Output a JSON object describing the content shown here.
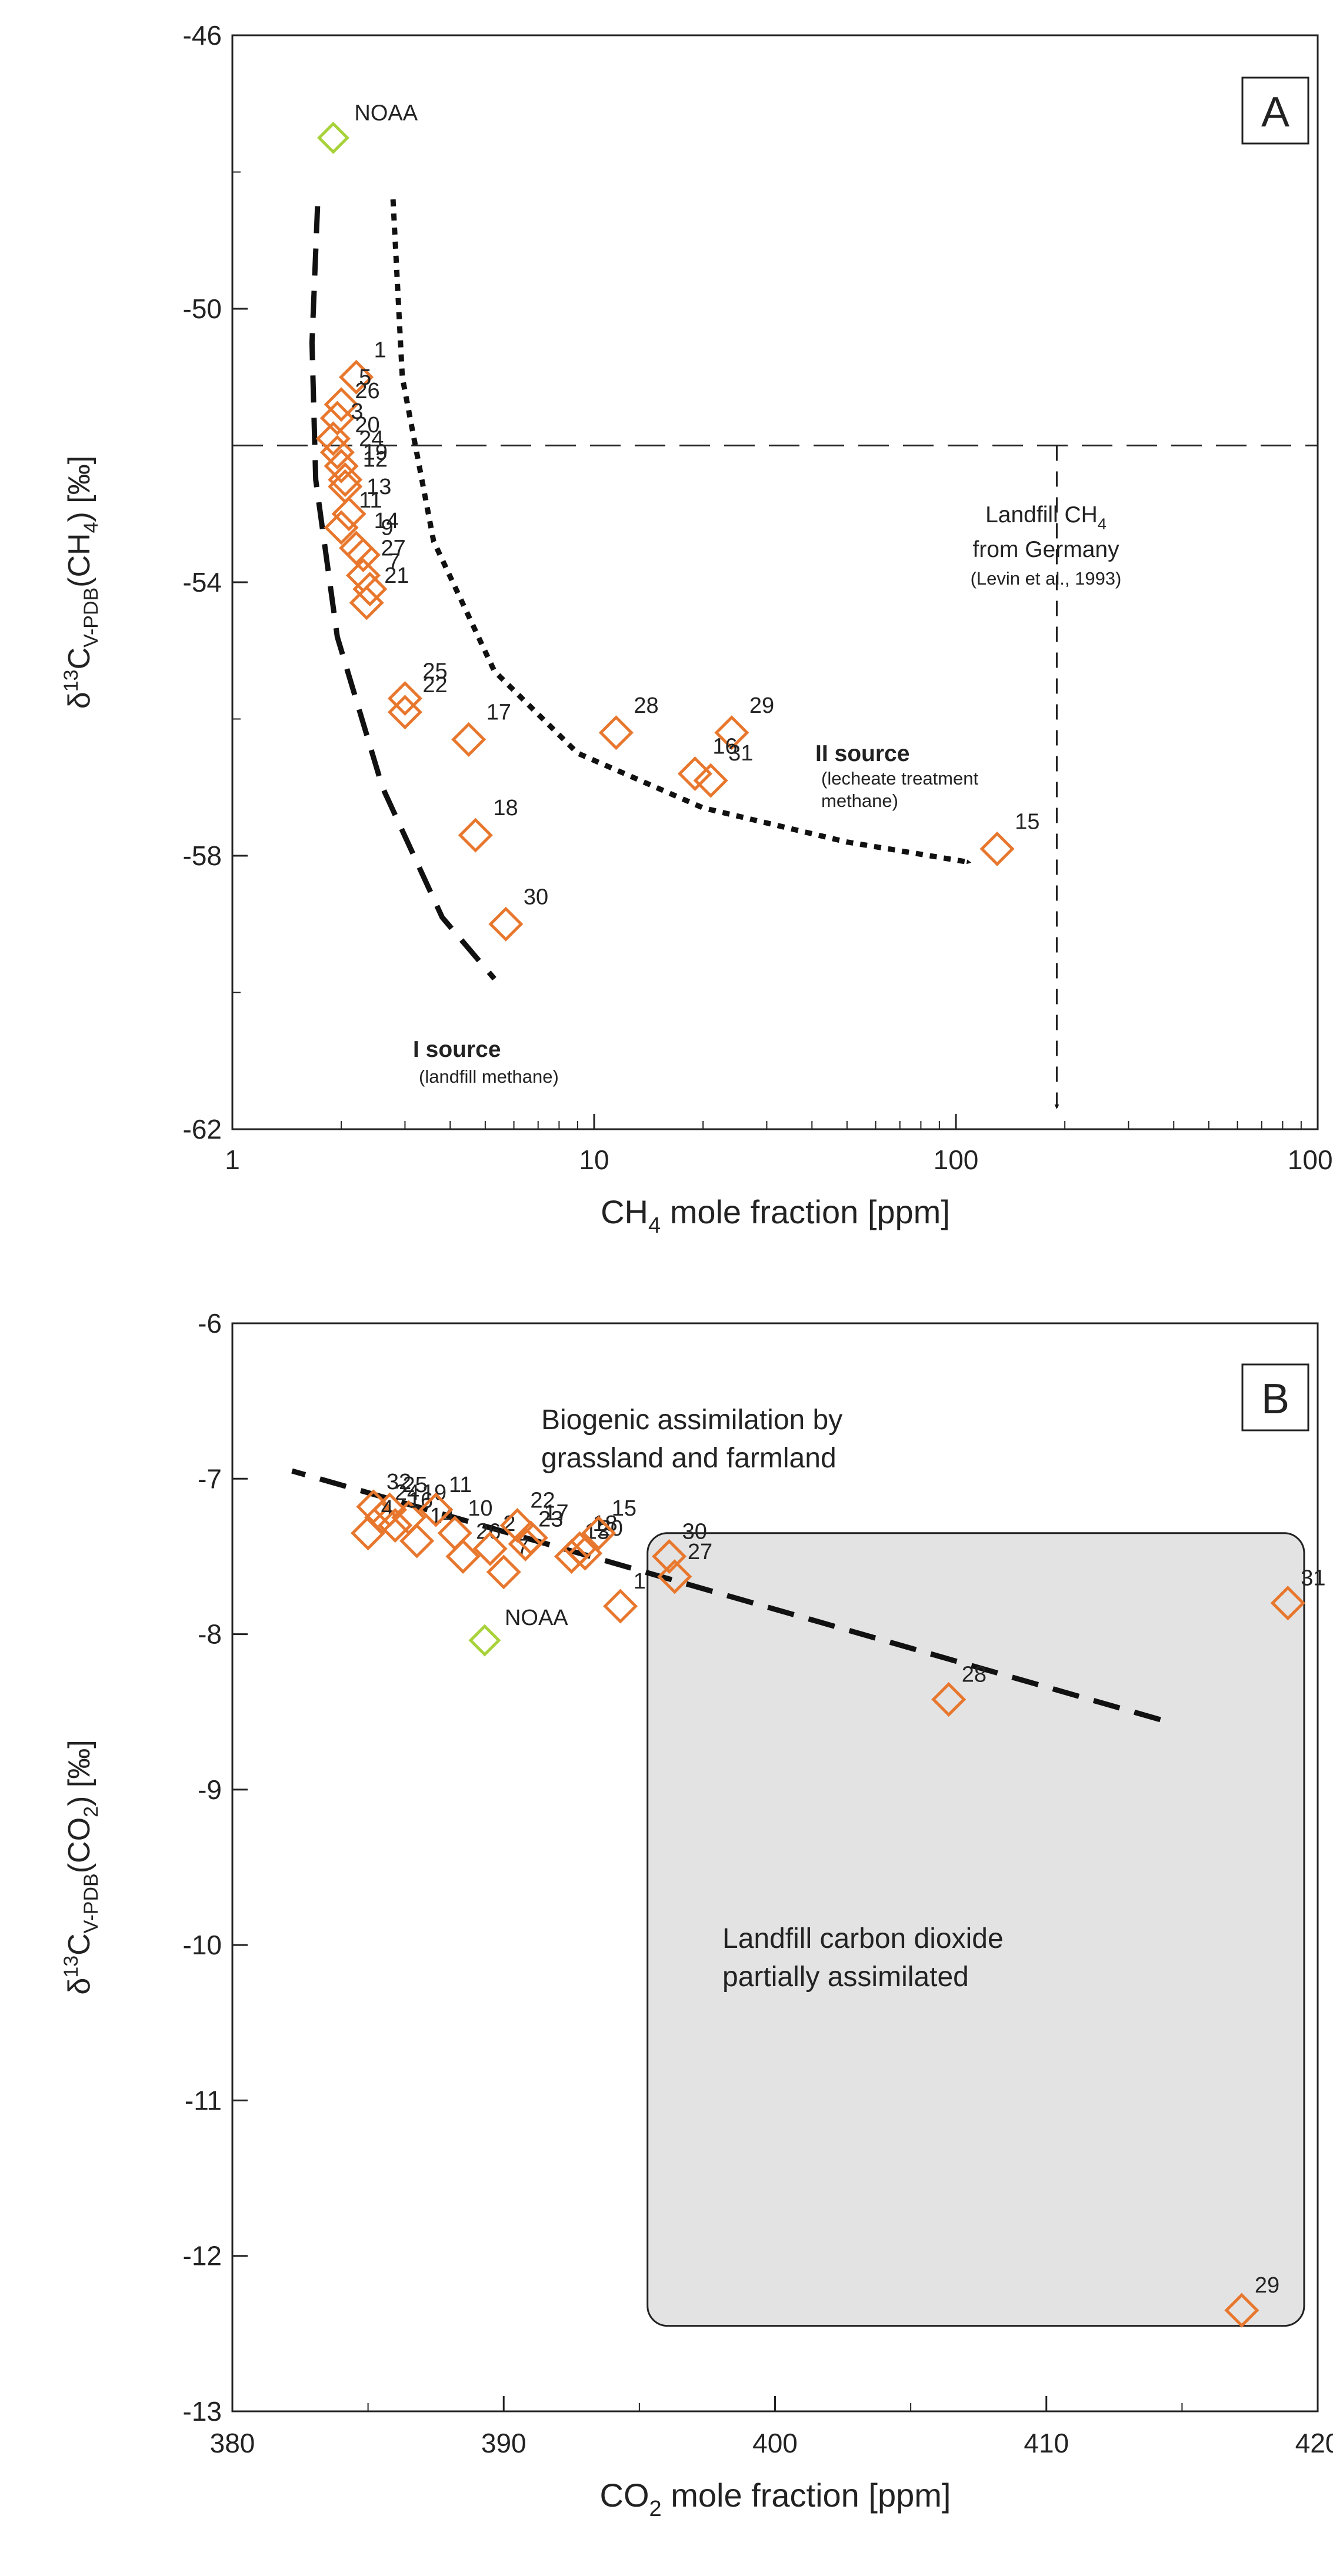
{
  "colors": {
    "orange": "#E8772E",
    "green": "#A8D23A",
    "grey_box": "#E3E3E3",
    "ink": "#222222"
  },
  "panels": {
    "A": {
      "tag": "A"
    },
    "B": {
      "tag": "B"
    }
  },
  "chart_data": [
    {
      "panel": "A",
      "type": "scatter",
      "xscale": "log",
      "xlim": [
        1,
        1000
      ],
      "ylim": [
        -62,
        -46
      ],
      "xticks": [
        1,
        10,
        100,
        1000
      ],
      "xtick_labels": [
        "1",
        "10",
        "100",
        "1000"
      ],
      "yticks": [
        -46,
        -50,
        -54,
        -58,
        -62
      ],
      "ytick_labels": [
        "-46",
        "-50",
        "-54",
        "-58",
        "-62"
      ],
      "xlabel": {
        "main": "CH",
        "sub": "4",
        "rest": " mole fraction [ppm]"
      },
      "ylabel": {
        "delta": "δ",
        "sup": "13",
        "c": "C",
        "sub": "V-PDB",
        "paren": "(CH",
        "sub2": "4",
        "end": ") [‰]"
      },
      "reference_line": {
        "y": -52,
        "x_at": 190
      },
      "reference_label": {
        "line1": "Landfill CH",
        "line1_sub": "4",
        "line2": "from Germany",
        "line3": "(Levin et al., 1993)"
      },
      "sources": {
        "I": {
          "title": "I source",
          "subtitle": "(landfill methane)"
        },
        "II": {
          "title": "II source",
          "subtitle1": "(lecheate treatment",
          "subtitle2": "methane)"
        }
      },
      "reference_point": {
        "label": "NOAA",
        "x": 1.9,
        "y": -47.5
      },
      "points": [
        {
          "label": "1",
          "x": 2.2,
          "y": -51.0
        },
        {
          "label": "5",
          "x": 2.0,
          "y": -51.4
        },
        {
          "label": "26",
          "x": 1.95,
          "y": -51.6
        },
        {
          "label": "3",
          "x": 1.9,
          "y": -51.9
        },
        {
          "label": "20",
          "x": 1.95,
          "y": -52.1
        },
        {
          "label": "24",
          "x": 2.0,
          "y": -52.3
        },
        {
          "label": "19",
          "x": 2.05,
          "y": -52.5
        },
        {
          "label": "12",
          "x": 2.05,
          "y": -52.6
        },
        {
          "label": "13",
          "x": 2.1,
          "y": -53.0
        },
        {
          "label": "11",
          "x": 2.0,
          "y": -53.2
        },
        {
          "label": "14",
          "x": 2.2,
          "y": -53.5
        },
        {
          "label": "9",
          "x": 2.3,
          "y": -53.6
        },
        {
          "label": "27",
          "x": 2.3,
          "y": -53.9
        },
        {
          "label": "7",
          "x": 2.4,
          "y": -54.1
        },
        {
          "label": "21",
          "x": 2.35,
          "y": -54.3
        },
        {
          "label": "25",
          "x": 3.0,
          "y": -55.7
        },
        {
          "label": "22",
          "x": 3.0,
          "y": -55.9
        },
        {
          "label": "17",
          "x": 4.5,
          "y": -56.3
        },
        {
          "label": "18",
          "x": 4.7,
          "y": -57.7
        },
        {
          "label": "30",
          "x": 5.7,
          "y": -59.0
        },
        {
          "label": "28",
          "x": 11.5,
          "y": -56.2
        },
        {
          "label": "29",
          "x": 24.0,
          "y": -56.2
        },
        {
          "label": "16",
          "x": 19.0,
          "y": -56.8
        },
        {
          "label": "31",
          "x": 21.0,
          "y": -56.9
        },
        {
          "label": "15",
          "x": 130.0,
          "y": -57.9
        }
      ]
    },
    {
      "panel": "B",
      "type": "scatter",
      "xscale": "linear",
      "xlim": [
        380,
        420
      ],
      "ylim": [
        -13,
        -6
      ],
      "xticks": [
        380,
        390,
        400,
        410,
        420
      ],
      "xtick_labels": [
        "380",
        "390",
        "400",
        "410",
        "420"
      ],
      "yticks": [
        -6,
        -7,
        -8,
        -9,
        -10,
        -11,
        -12,
        -13
      ],
      "ytick_labels": [
        "-6",
        "-7",
        "-8",
        "-9",
        "-10",
        "-11",
        "-12",
        "-13"
      ],
      "xlabel": {
        "main": "CO",
        "sub": "2",
        "rest": " mole fraction [ppm]"
      },
      "ylabel": {
        "delta": "δ",
        "sup": "13",
        "c": "C",
        "sub": "V-PDB",
        "paren": "(CO",
        "sub2": "2",
        "end": ") [‰]"
      },
      "annotation_biogenic": {
        "line1": "Biogenic assimilation by",
        "line2": "grassland and farmland"
      },
      "annotation_landfill": {
        "line1": "Landfill carbon dioxide",
        "line2": "partially assimilated"
      },
      "box": {
        "x": [
          395.3,
          419.5
        ],
        "y": [
          -7.35,
          -12.45
        ]
      },
      "trend": {
        "x": [
          382.2,
          414.2
        ],
        "y": [
          -6.95,
          -8.55
        ]
      },
      "reference_point": {
        "label": "NOAA",
        "x": 389.3,
        "y": -8.04
      },
      "points": [
        {
          "label": "32",
          "x": 385.2,
          "y": -7.18
        },
        {
          "label": "24",
          "x": 385.5,
          "y": -7.25
        },
        {
          "label": "4",
          "x": 385.0,
          "y": -7.35
        },
        {
          "label": "25",
          "x": 385.8,
          "y": -7.2
        },
        {
          "label": "19",
          "x": 386.5,
          "y": -7.25
        },
        {
          "label": "16",
          "x": 386.0,
          "y": -7.3
        },
        {
          "label": "14",
          "x": 386.8,
          "y": -7.4
        },
        {
          "label": "11",
          "x": 387.5,
          "y": -7.2
        },
        {
          "label": "10",
          "x": 388.2,
          "y": -7.35
        },
        {
          "label": "26",
          "x": 388.5,
          "y": -7.5
        },
        {
          "label": "2",
          "x": 389.5,
          "y": -7.45
        },
        {
          "label": "7",
          "x": 390.0,
          "y": -7.6
        },
        {
          "label": "22",
          "x": 390.5,
          "y": -7.3
        },
        {
          "label": "23",
          "x": 390.8,
          "y": -7.42
        },
        {
          "label": "17",
          "x": 391.0,
          "y": -7.38
        },
        {
          "label": "13",
          "x": 392.5,
          "y": -7.5
        },
        {
          "label": "18",
          "x": 392.8,
          "y": -7.45
        },
        {
          "label": "20",
          "x": 393.0,
          "y": -7.48
        },
        {
          "label": "15",
          "x": 393.5,
          "y": -7.35
        },
        {
          "label": "1",
          "x": 394.3,
          "y": -7.82
        },
        {
          "label": "30",
          "x": 396.1,
          "y": -7.5
        },
        {
          "label": "27",
          "x": 396.3,
          "y": -7.63
        },
        {
          "label": "28",
          "x": 406.4,
          "y": -8.42
        },
        {
          "label": "31",
          "x": 418.9,
          "y": -7.8
        },
        {
          "label": "29",
          "x": 417.2,
          "y": -12.35
        }
      ]
    }
  ]
}
